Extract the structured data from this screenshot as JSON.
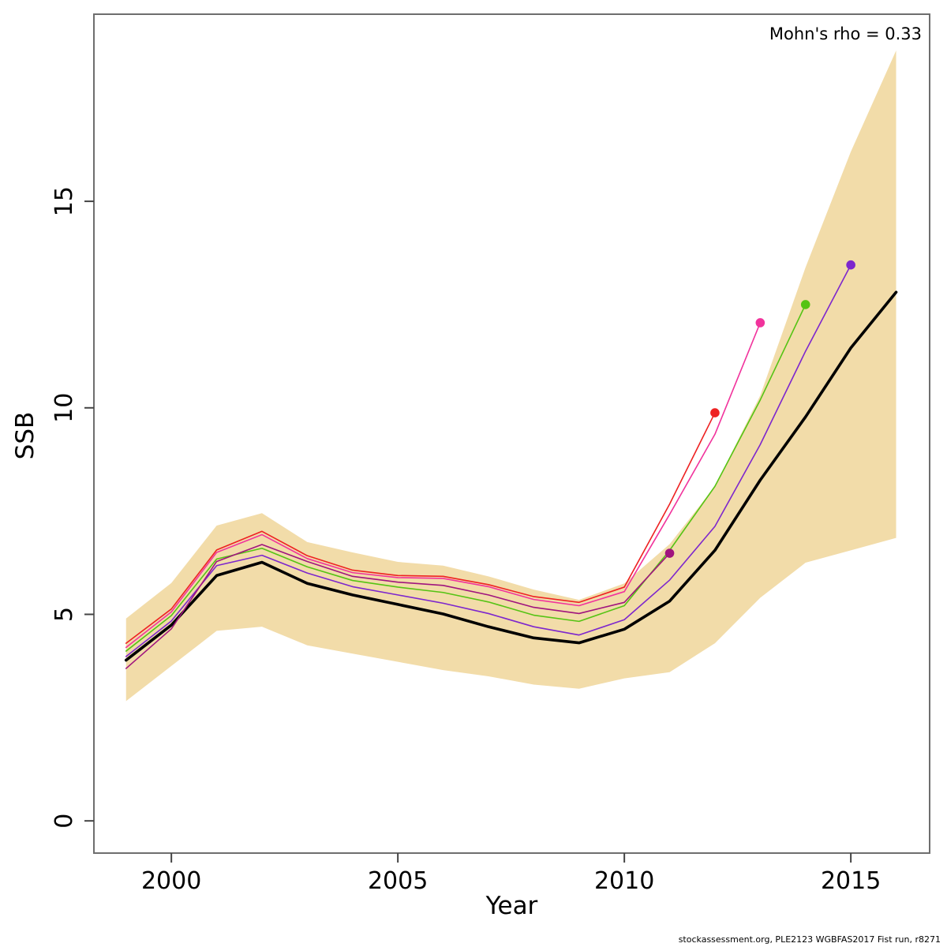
{
  "annotation": "Mohn's rho = 0.33",
  "footer": "stockassessment.org, PLE2123 WGBFAS2017 Fist run, r8271",
  "axes": {
    "xlabel": "Year",
    "ylabel": "SSB"
  },
  "colors": {
    "band": "#F2DCA9",
    "base": "#000000",
    "frame": "#6e6e6e",
    "tick": "#444444"
  },
  "chart_data": {
    "type": "line",
    "title": "",
    "xlabel": "Year",
    "ylabel": "SSB",
    "annotation": "Mohn's rho = 0.33",
    "grid": false,
    "legend": "none",
    "x_ticks": [
      2000,
      2005,
      2010,
      2015
    ],
    "y_ticks": [
      0,
      5,
      10,
      15
    ],
    "xlim": [
      1998.29,
      2016.74
    ],
    "ylim": [
      -0.78,
      19.53
    ],
    "band": {
      "name": "confidence-band",
      "color": "#F2DCA9",
      "years": [
        1999,
        2000,
        2001,
        2002,
        2003,
        2004,
        2005,
        2006,
        2007,
        2008,
        2009,
        2010,
        2011,
        2012,
        2013,
        2014,
        2015,
        2016
      ],
      "lower": [
        2.9,
        3.75,
        4.6,
        4.7,
        4.25,
        4.05,
        3.85,
        3.65,
        3.5,
        3.3,
        3.2,
        3.45,
        3.6,
        4.3,
        5.4,
        6.25,
        6.55,
        6.85
      ],
      "upper": [
        4.9,
        5.76,
        7.15,
        7.45,
        6.75,
        6.5,
        6.27,
        6.18,
        5.92,
        5.6,
        5.35,
        5.75,
        6.7,
        8.1,
        10.3,
        13.4,
        16.2,
        18.65
      ]
    },
    "series": [
      {
        "name": "base-run",
        "color": "#000000",
        "width": 3.6,
        "end_dot": false,
        "years": [
          1999,
          2000,
          2001,
          2002,
          2003,
          2004,
          2005,
          2006,
          2007,
          2008,
          2009,
          2010,
          2011,
          2012,
          2013,
          2014,
          2015,
          2016
        ],
        "values": [
          3.89,
          4.74,
          5.94,
          6.26,
          5.75,
          5.47,
          5.24,
          5.01,
          4.7,
          4.43,
          4.31,
          4.64,
          5.32,
          6.55,
          8.25,
          9.78,
          11.45,
          12.8
        ]
      },
      {
        "name": "retro-2012",
        "color": "#EE2222",
        "width": 1.6,
        "end_dot": true,
        "years": [
          1999,
          2000,
          2001,
          2002,
          2003,
          2004,
          2005,
          2006,
          2007,
          2008,
          2009,
          2010,
          2011,
          2012
        ],
        "values": [
          4.3,
          5.13,
          6.56,
          7.01,
          6.42,
          6.07,
          5.94,
          5.92,
          5.72,
          5.43,
          5.29,
          5.66,
          7.67,
          9.88
        ]
      },
      {
        "name": "retro-2013",
        "color": "#F1339C",
        "width": 1.6,
        "end_dot": true,
        "years": [
          1999,
          2000,
          2001,
          2002,
          2003,
          2004,
          2005,
          2006,
          2007,
          2008,
          2009,
          2010,
          2011,
          2012,
          2013
        ],
        "values": [
          4.2,
          5.06,
          6.5,
          6.93,
          6.35,
          6.01,
          5.89,
          5.87,
          5.67,
          5.36,
          5.21,
          5.55,
          7.42,
          9.36,
          12.06
        ]
      },
      {
        "name": "retro-2014",
        "color": "#55C314",
        "width": 1.6,
        "end_dot": true,
        "years": [
          1999,
          2000,
          2001,
          2002,
          2003,
          2004,
          2005,
          2006,
          2007,
          2008,
          2009,
          2010,
          2011,
          2012,
          2013,
          2014
        ],
        "values": [
          4.11,
          4.97,
          6.34,
          6.6,
          6.15,
          5.82,
          5.66,
          5.53,
          5.3,
          4.98,
          4.83,
          5.21,
          6.55,
          8.1,
          10.19,
          12.5
        ]
      },
      {
        "name": "retro-2015",
        "color": "#7D26CD",
        "width": 1.6,
        "end_dot": true,
        "years": [
          1999,
          2000,
          2001,
          2002,
          2003,
          2004,
          2005,
          2006,
          2007,
          2008,
          2009,
          2010,
          2011,
          2012,
          2013,
          2014,
          2015
        ],
        "values": [
          3.98,
          4.84,
          6.18,
          6.43,
          6.0,
          5.67,
          5.47,
          5.27,
          5.02,
          4.7,
          4.5,
          4.87,
          5.83,
          7.13,
          9.11,
          11.37,
          13.46
        ]
      },
      {
        "name": "retro-2011",
        "color": "#A0147E",
        "width": 1.6,
        "end_dot": true,
        "years": [
          1999,
          2000,
          2001,
          2002,
          2003,
          2004,
          2005,
          2006,
          2007,
          2008,
          2009,
          2010,
          2011
        ],
        "values": [
          3.69,
          4.65,
          6.28,
          6.69,
          6.28,
          5.92,
          5.78,
          5.7,
          5.47,
          5.17,
          5.02,
          5.29,
          6.48
        ]
      }
    ]
  }
}
